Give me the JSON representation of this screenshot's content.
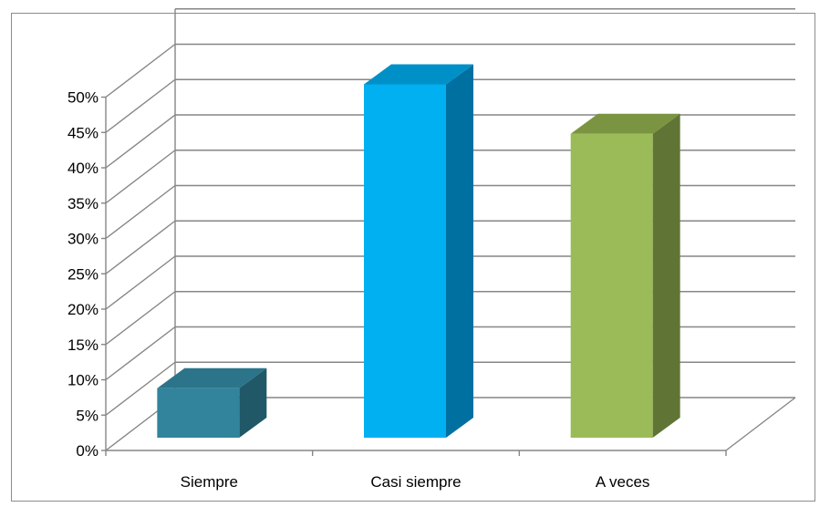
{
  "chart_data": {
    "type": "bar",
    "style": "3d-column",
    "categories": [
      "Siempre",
      "Casi siempre",
      "A veces"
    ],
    "values": [
      7,
      50,
      43
    ],
    "ylim": [
      0,
      50
    ],
    "ytick_step": 5,
    "ytick_format": "percent",
    "grid": true,
    "legend": "none",
    "title": "",
    "xlabel": "",
    "ylabel": "",
    "colors": {
      "Siempre": {
        "front": "#31849B",
        "side": "#215868",
        "top": "#2C7489"
      },
      "Casi siempre": {
        "front": "#00B0F0",
        "side": "#0070A0",
        "top": "#0090C8"
      },
      "A veces": {
        "front": "#9BBB59",
        "side": "#607535",
        "top": "#7A9442"
      }
    },
    "grid_color": "#868686"
  }
}
